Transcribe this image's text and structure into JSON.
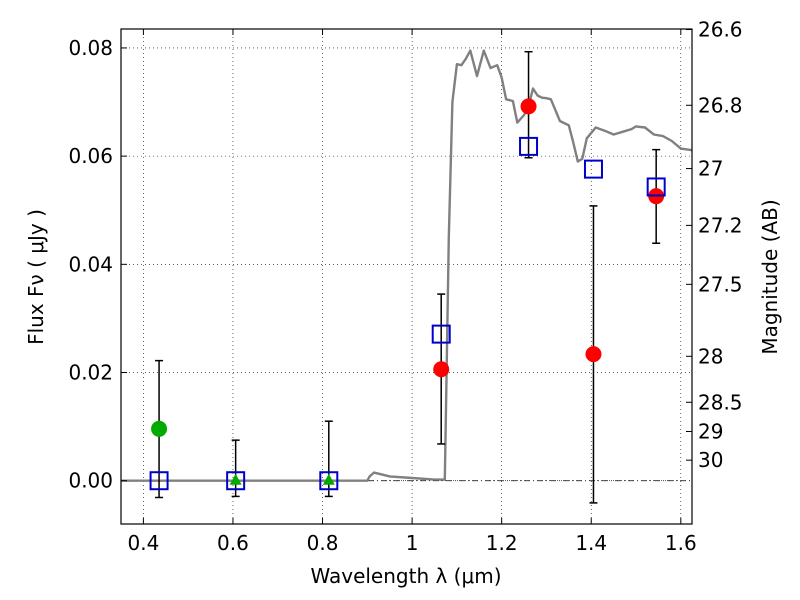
{
  "chart_data": {
    "type": "scatter",
    "xlabel": "Wavelength  λ (μm)",
    "ylabel": "Flux  Fν  ( μJy )",
    "ylabel_right": "Magnitude (AB)",
    "xlim": [
      0.35,
      1.625
    ],
    "ylim": [
      -0.008,
      0.0835
    ],
    "x_ticks": [
      0.4,
      0.6,
      0.8,
      1.0,
      1.2,
      1.4,
      1.6
    ],
    "x_tick_labels": [
      "0.4",
      "0.6",
      "0.8",
      "1",
      "1.2",
      "1.4",
      "1.6"
    ],
    "y_ticks": [
      0.0,
      0.02,
      0.04,
      0.06,
      0.08
    ],
    "y_tick_labels": [
      "0.00",
      "0.02",
      "0.04",
      "0.06",
      "0.08"
    ],
    "right_ticks": [
      {
        "label": "26.6",
        "flux": 0.0834
      },
      {
        "label": "26.8",
        "flux": 0.0694
      },
      {
        "label": "27",
        "flux": 0.0577
      },
      {
        "label": "27.2",
        "flux": 0.0472
      },
      {
        "label": "27.5",
        "flux": 0.0363
      },
      {
        "label": "28",
        "flux": 0.023
      },
      {
        "label": "28.5",
        "flux": 0.0145
      },
      {
        "label": "29",
        "flux": 0.0091
      },
      {
        "label": "30",
        "flux": 0.0038
      }
    ],
    "grid": true,
    "colors": {
      "model": "#808080",
      "observed": "#ff0000",
      "upper_limit": "#00aa00",
      "model_photometry": "#0000cc",
      "errorbar": "#000000"
    },
    "model_spectrum": {
      "x": [
        0.35,
        0.9,
        0.905,
        0.915,
        0.93,
        0.95,
        1.0,
        1.05,
        1.073,
        1.075,
        1.082,
        1.09,
        1.1,
        1.11,
        1.12,
        1.13,
        1.145,
        1.16,
        1.175,
        1.19,
        1.2,
        1.21,
        1.225,
        1.235,
        1.25,
        1.26,
        1.27,
        1.28,
        1.29,
        1.3,
        1.31,
        1.33,
        1.35,
        1.36,
        1.37,
        1.38,
        1.39,
        1.41,
        1.43,
        1.45,
        1.47,
        1.49,
        1.5,
        1.52,
        1.54,
        1.56,
        1.58,
        1.6,
        1.625
      ],
      "y": [
        0.0,
        0.0,
        0.0008,
        0.0015,
        0.0012,
        0.0008,
        0.0005,
        0.0002,
        0.0002,
        0.01,
        0.045,
        0.07,
        0.077,
        0.0768,
        0.078,
        0.0795,
        0.0748,
        0.0795,
        0.0763,
        0.0768,
        0.0745,
        0.0705,
        0.0702,
        0.0662,
        0.0676,
        0.0692,
        0.0725,
        0.0712,
        0.0708,
        0.0707,
        0.0705,
        0.0665,
        0.0657,
        0.0625,
        0.059,
        0.0595,
        0.0633,
        0.0653,
        0.0647,
        0.064,
        0.0645,
        0.065,
        0.0655,
        0.0653,
        0.064,
        0.0637,
        0.0628,
        0.0614,
        0.0611
      ]
    },
    "observed": [
      {
        "x": 1.065,
        "y": 0.0206,
        "yerr_low": 0.0068,
        "yerr_high": 0.0345
      },
      {
        "x": 1.26,
        "y": 0.0692,
        "yerr_low": 0.0597,
        "yerr_high": 0.0793
      },
      {
        "x": 1.405,
        "y": 0.0234,
        "yerr_low": -0.0041,
        "yerr_high": 0.0508
      },
      {
        "x": 1.545,
        "y": 0.0526,
        "yerr_low": 0.0439,
        "yerr_high": 0.0612
      }
    ],
    "upper_limits": [
      {
        "x": 0.435,
        "y": 0.0096,
        "marker": "circle",
        "yerr_low": -0.0031,
        "yerr_high": 0.0222
      },
      {
        "x": 0.606,
        "y": 0.0,
        "marker": "triangle",
        "yerr_low": -0.0029,
        "yerr_high": 0.0075
      },
      {
        "x": 0.814,
        "y": 0.0,
        "marker": "triangle",
        "yerr_low": -0.0029,
        "yerr_high": 0.011
      }
    ],
    "model_photometry": [
      {
        "x": 0.435,
        "y": 0.0
      },
      {
        "x": 0.606,
        "y": 0.0
      },
      {
        "x": 0.814,
        "y": 0.0
      },
      {
        "x": 1.065,
        "y": 0.0271
      },
      {
        "x": 1.26,
        "y": 0.0618
      },
      {
        "x": 1.405,
        "y": 0.0576
      },
      {
        "x": 1.545,
        "y": 0.0543
      }
    ]
  }
}
